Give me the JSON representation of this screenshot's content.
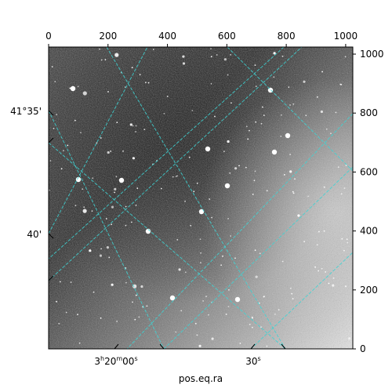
{
  "chart_data": {
    "type": "heatmap",
    "title": "",
    "xlabel": "pos.eq.ra",
    "ylabel": "",
    "pixel_axes": {
      "x_range": [
        0,
        1024
      ],
      "y_range": [
        0,
        1024
      ],
      "top_ticks": [
        0,
        200,
        400,
        600,
        800,
        1000
      ],
      "right_ticks": [
        0,
        200,
        400,
        600,
        800,
        1000
      ]
    },
    "ra_ticks": [
      {
        "h": "3",
        "h_unit": "h",
        "m": "20",
        "m_unit": "m",
        "s": "00",
        "s_unit": "s"
      },
      {
        "h": "",
        "h_unit": "",
        "m": "",
        "m_unit": "",
        "s": "30",
        "s_unit": "s"
      }
    ],
    "dec_ticks": [
      "41°35'",
      "40'"
    ],
    "grid": true,
    "grid_color": "#3fd4d4",
    "image_colormap": "gray",
    "image_description_colors": {
      "dark": "#2a2a2a",
      "light": "#e6e6e6"
    }
  }
}
